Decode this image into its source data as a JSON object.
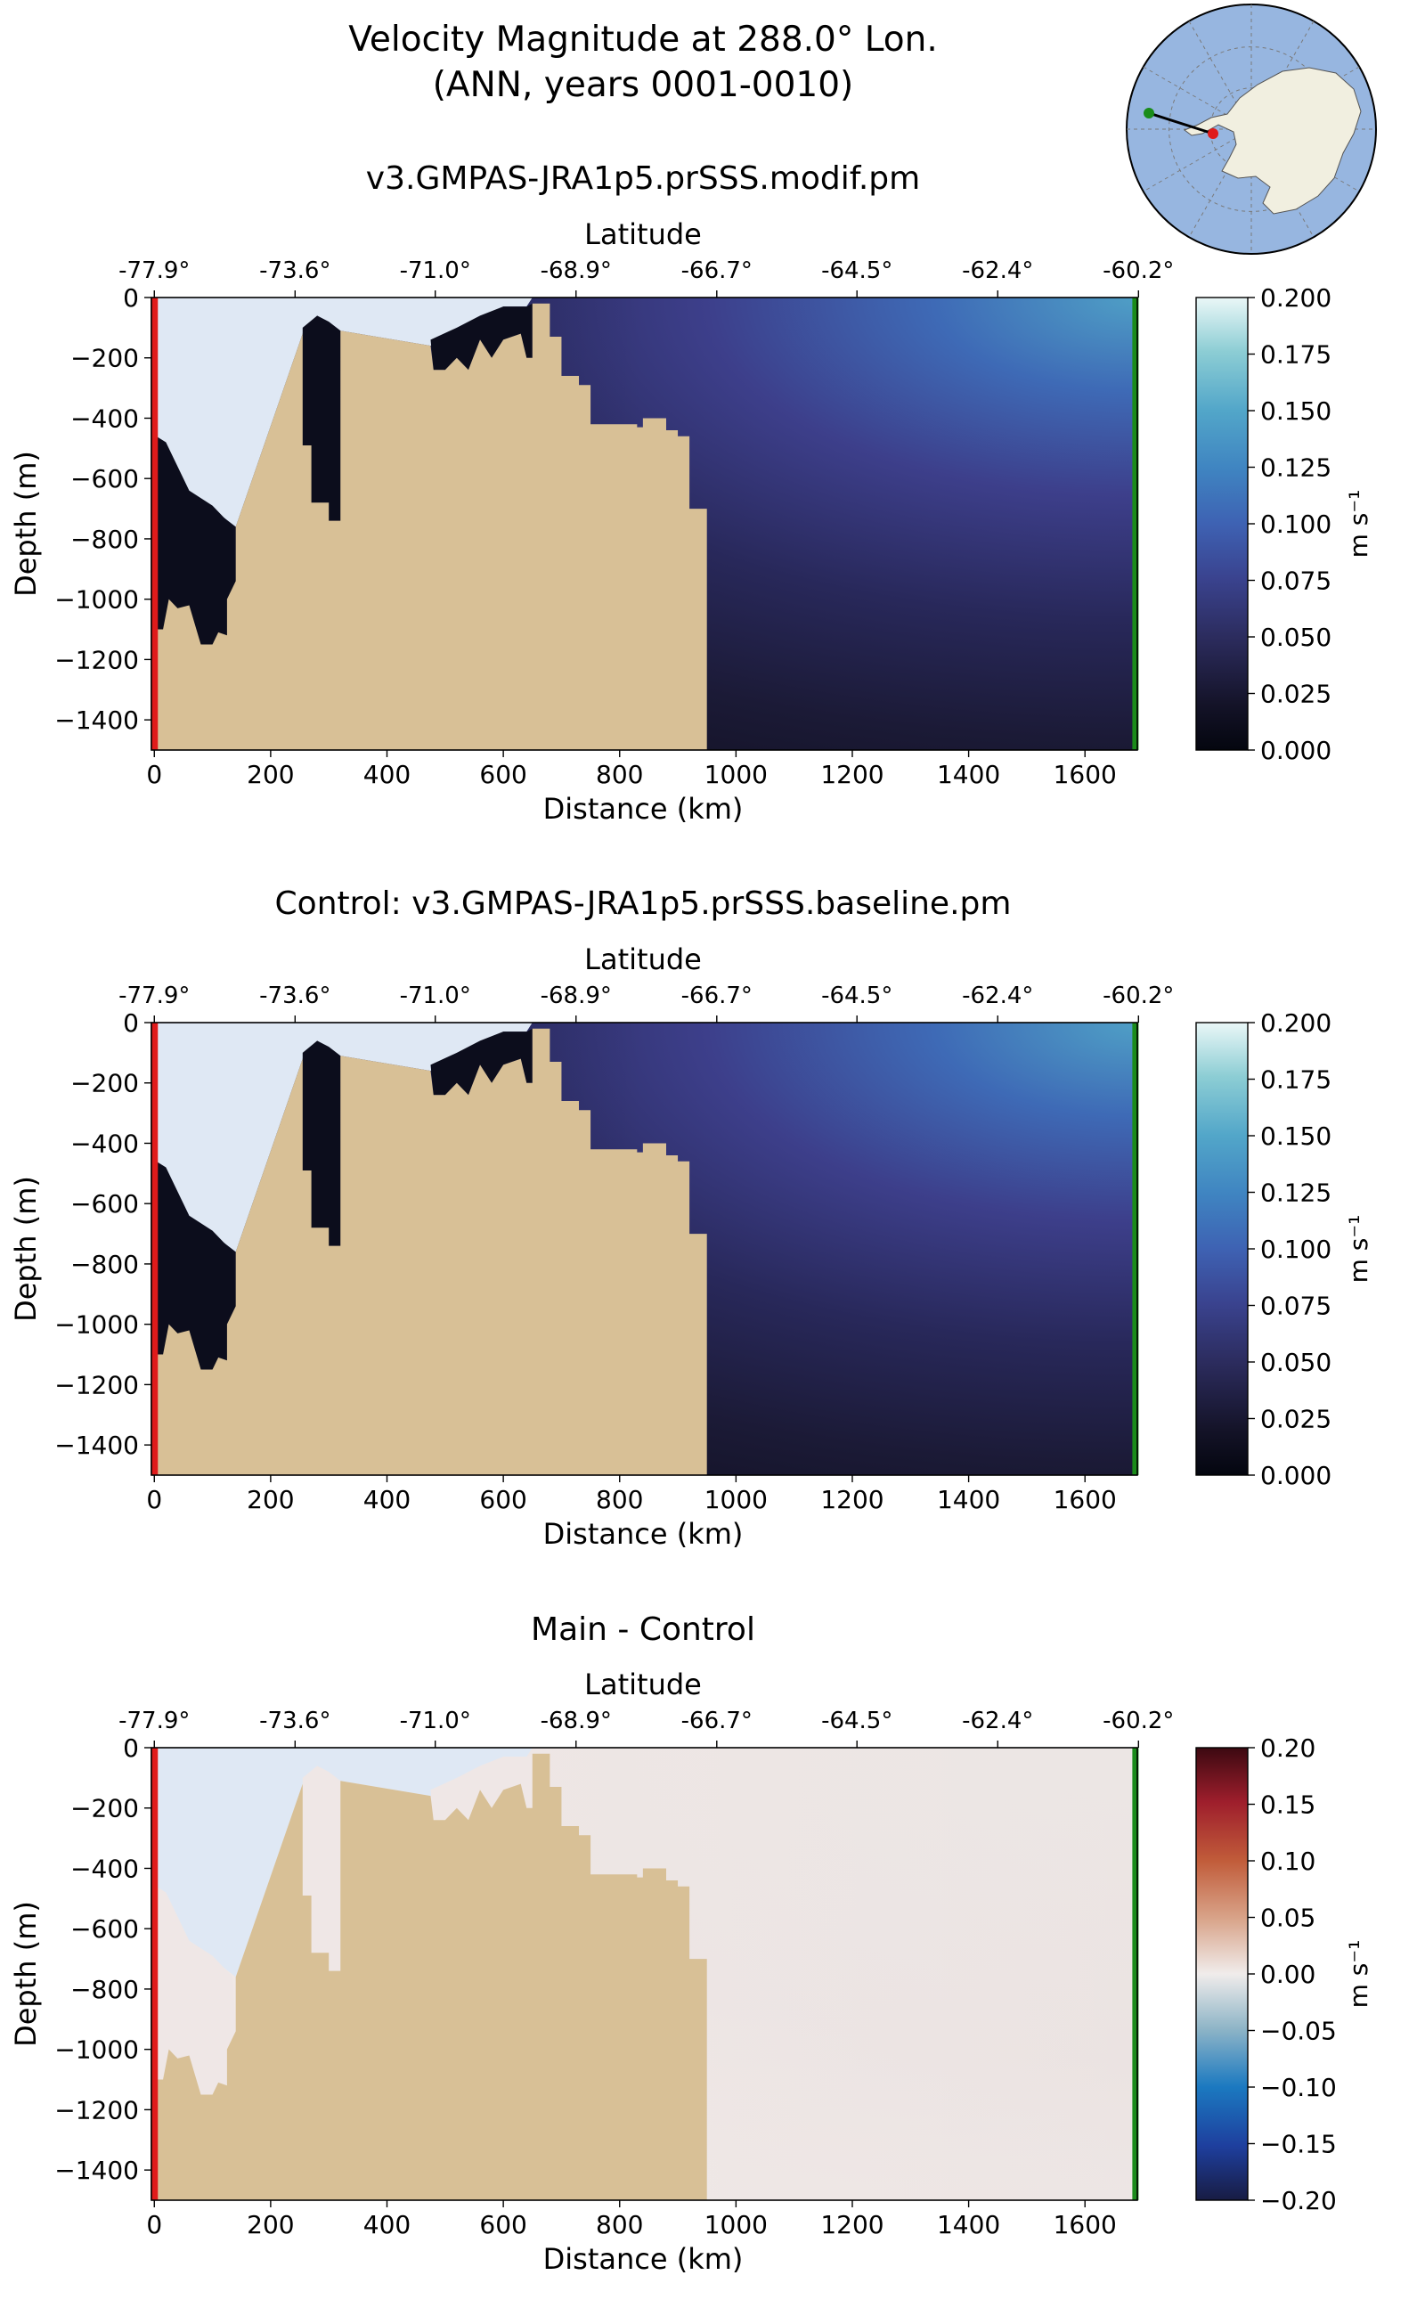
{
  "figure": {
    "title_line1": "Velocity Magnitude at 288.0° Lon.",
    "title_line2": "(ANN, years 0001-0010)"
  },
  "colors": {
    "land": "#d8c096",
    "ice_shelf": "#dfe8f4",
    "transect_start": "#e01b1b",
    "transect_end": "#1a8c1a",
    "ocean_map": "#97b6e0",
    "antarctica_map": "#f1efe0"
  },
  "chart_data": [
    {
      "type": "heatmap",
      "title": "v3.GMPAS-JRA1p5.prSSS.modif.pm",
      "xlabel": "Distance (km)",
      "ylabel": "Depth (m)",
      "top_xlabel": "Latitude",
      "xlim": [
        -5,
        1690
      ],
      "ylim": [
        -1500,
        0
      ],
      "x_ticks": [
        0,
        200,
        400,
        600,
        800,
        1000,
        1200,
        1400,
        1600
      ],
      "x_tick_labels": [
        "0",
        "200",
        "400",
        "600",
        "800",
        "1000",
        "1200",
        "1400",
        "1600"
      ],
      "y_ticks": [
        0,
        -200,
        -400,
        -600,
        -800,
        -1000,
        -1200,
        -1400
      ],
      "y_tick_labels": [
        "0",
        "−200",
        "−400",
        "−600",
        "−800",
        "−1000",
        "−1200",
        "−1400"
      ],
      "lat_ticks_km": [
        0,
        242,
        483,
        725,
        967,
        1208,
        1450,
        1692
      ],
      "lat_tick_labels": [
        "-77.9°",
        "-73.6°",
        "-71.0°",
        "-68.9°",
        "-66.7°",
        "-64.5°",
        "-62.4°",
        "-60.2°"
      ],
      "colorbar": {
        "label": "m s⁻¹",
        "cmap": "ice",
        "vmin": 0.0,
        "vmax": 0.2,
        "ticks": [
          0.0,
          0.025,
          0.05,
          0.075,
          0.1,
          0.125,
          0.15,
          0.175,
          0.2
        ],
        "tick_labels": [
          "0.000",
          "0.025",
          "0.050",
          "0.075",
          "0.100",
          "0.125",
          "0.150",
          "0.175",
          "0.200"
        ]
      },
      "field": "velocity-magnitude"
    },
    {
      "type": "heatmap",
      "title": "Control: v3.GMPAS-JRA1p5.prSSS.baseline.pm",
      "xlabel": "Distance (km)",
      "ylabel": "Depth (m)",
      "top_xlabel": "Latitude",
      "xlim": [
        -5,
        1690
      ],
      "ylim": [
        -1500,
        0
      ],
      "x_ticks": [
        0,
        200,
        400,
        600,
        800,
        1000,
        1200,
        1400,
        1600
      ],
      "x_tick_labels": [
        "0",
        "200",
        "400",
        "600",
        "800",
        "1000",
        "1200",
        "1400",
        "1600"
      ],
      "y_ticks": [
        0,
        -200,
        -400,
        -600,
        -800,
        -1000,
        -1200,
        -1400
      ],
      "y_tick_labels": [
        "0",
        "−200",
        "−400",
        "−600",
        "−800",
        "−1000",
        "−1200",
        "−1400"
      ],
      "lat_ticks_km": [
        0,
        242,
        483,
        725,
        967,
        1208,
        1450,
        1692
      ],
      "lat_tick_labels": [
        "-77.9°",
        "-73.6°",
        "-71.0°",
        "-68.9°",
        "-66.7°",
        "-64.5°",
        "-62.4°",
        "-60.2°"
      ],
      "colorbar": {
        "label": "m s⁻¹",
        "cmap": "ice",
        "vmin": 0.0,
        "vmax": 0.2,
        "ticks": [
          0.0,
          0.025,
          0.05,
          0.075,
          0.1,
          0.125,
          0.15,
          0.175,
          0.2
        ],
        "tick_labels": [
          "0.000",
          "0.025",
          "0.050",
          "0.075",
          "0.100",
          "0.125",
          "0.150",
          "0.175",
          "0.200"
        ]
      },
      "field": "velocity-magnitude"
    },
    {
      "type": "heatmap",
      "title": "Main - Control",
      "xlabel": "Distance (km)",
      "ylabel": "Depth (m)",
      "top_xlabel": "Latitude",
      "xlim": [
        -5,
        1690
      ],
      "ylim": [
        -1500,
        0
      ],
      "x_ticks": [
        0,
        200,
        400,
        600,
        800,
        1000,
        1200,
        1400,
        1600
      ],
      "x_tick_labels": [
        "0",
        "200",
        "400",
        "600",
        "800",
        "1000",
        "1200",
        "1400",
        "1600"
      ],
      "y_ticks": [
        0,
        -200,
        -400,
        -600,
        -800,
        -1000,
        -1200,
        -1400
      ],
      "y_tick_labels": [
        "0",
        "−200",
        "−400",
        "−600",
        "−800",
        "−1000",
        "−1200",
        "−1400"
      ],
      "lat_ticks_km": [
        0,
        242,
        483,
        725,
        967,
        1208,
        1450,
        1692
      ],
      "lat_tick_labels": [
        "-77.9°",
        "-73.6°",
        "-71.0°",
        "-68.9°",
        "-66.7°",
        "-64.5°",
        "-62.4°",
        "-60.2°"
      ],
      "colorbar": {
        "label": "m s⁻¹",
        "cmap": "balance",
        "vmin": -0.2,
        "vmax": 0.2,
        "ticks": [
          -0.2,
          -0.15,
          -0.1,
          -0.05,
          0.0,
          0.05,
          0.1,
          0.15,
          0.2
        ],
        "tick_labels": [
          "−0.20",
          "−0.15",
          "−0.10",
          "−0.05",
          "0.00",
          "0.05",
          "0.10",
          "0.15",
          "0.20"
        ]
      },
      "field": "difference"
    }
  ],
  "terrain": {
    "ocean_floor_profile": [
      [
        -5,
        -450
      ],
      [
        0,
        -460
      ],
      [
        20,
        -500
      ],
      [
        60,
        -650
      ],
      [
        100,
        -700
      ],
      [
        135,
        -760
      ],
      [
        140,
        -1500
      ]
    ],
    "description_only_in_code": true
  }
}
